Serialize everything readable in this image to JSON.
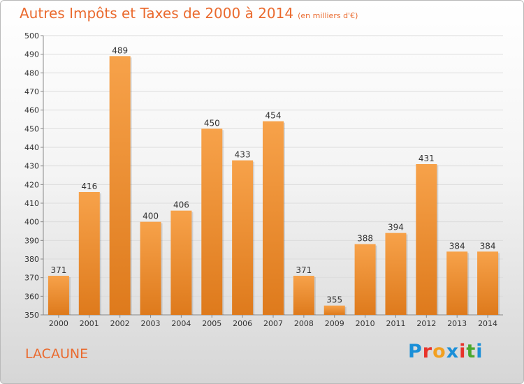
{
  "title": "Autres Impôts et Taxes de 2000 à 2014",
  "subtitle": "(en milliers d'€)",
  "place_label": "LACAUNE",
  "logo": {
    "letters": [
      "P",
      "r",
      "o",
      "x",
      "i",
      "t",
      "i"
    ],
    "colors": [
      "#1a8fd8",
      "#e8332a",
      "#f2a020",
      "#1a8fd8",
      "#e8332a",
      "#4aa82e",
      "#1a8fd8"
    ]
  },
  "colors": {
    "bar_light": "#f7a24a",
    "bar_dark": "#de7a1c",
    "title": "#ea6a2e"
  },
  "chart_data": {
    "type": "bar",
    "title": "Autres Impôts et Taxes de 2000 à 2014",
    "subtitle": "(en milliers d'€)",
    "categories": [
      "2000",
      "2001",
      "2002",
      "2003",
      "2004",
      "2005",
      "2006",
      "2007",
      "2008",
      "2009",
      "2010",
      "2011",
      "2012",
      "2013",
      "2014"
    ],
    "values": [
      371,
      416,
      489,
      400,
      406,
      450,
      433,
      454,
      371,
      355,
      388,
      394,
      431,
      384,
      384
    ],
    "ylim": [
      350,
      500
    ],
    "yticks": [
      350,
      360,
      370,
      380,
      390,
      400,
      410,
      420,
      430,
      440,
      450,
      460,
      470,
      480,
      490,
      500
    ],
    "grid": true
  }
}
